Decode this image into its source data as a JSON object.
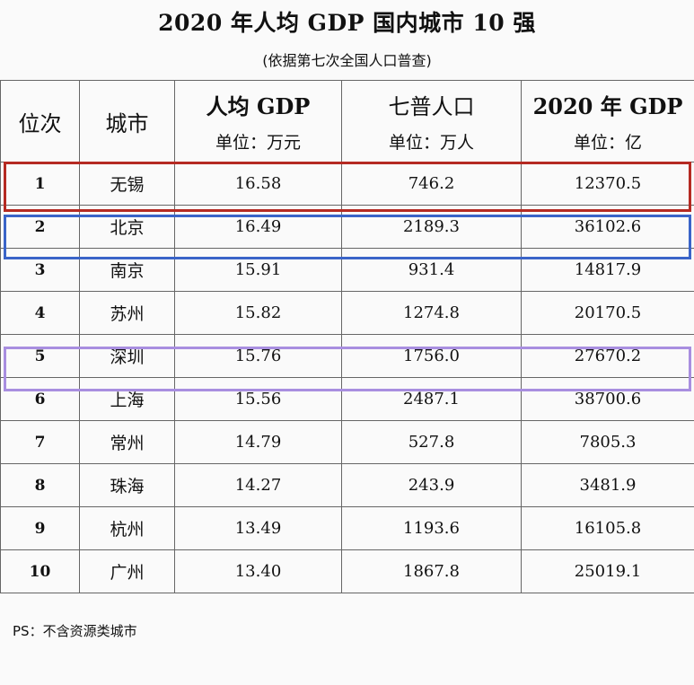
{
  "title": "2020 年人均 GDP 国内城市 10 强",
  "subtitle": "(依据第七次全国人口普查)",
  "columns": {
    "rank": "位次",
    "city": "城市",
    "gdp_per_capita": {
      "label": "人均 GDP",
      "unit": "单位：万元"
    },
    "population": {
      "label": "七普人口",
      "unit": "单位：万人"
    },
    "gdp": {
      "label": "2020 年 GDP",
      "unit": "单位：亿"
    }
  },
  "rows": [
    {
      "rank": "1",
      "city": "无锡",
      "gdp_per_capita": "16.58",
      "population": "746.2",
      "gdp": "12370.5"
    },
    {
      "rank": "2",
      "city": "北京",
      "gdp_per_capita": "16.49",
      "population": "2189.3",
      "gdp": "36102.6"
    },
    {
      "rank": "3",
      "city": "南京",
      "gdp_per_capita": "15.91",
      "population": "931.4",
      "gdp": "14817.9"
    },
    {
      "rank": "4",
      "city": "苏州",
      "gdp_per_capita": "15.82",
      "population": "1274.8",
      "gdp": "20170.5"
    },
    {
      "rank": "5",
      "city": "深圳",
      "gdp_per_capita": "15.76",
      "population": "1756.0",
      "gdp": "27670.2"
    },
    {
      "rank": "6",
      "city": "上海",
      "gdp_per_capita": "15.56",
      "population": "2487.1",
      "gdp": "38700.6"
    },
    {
      "rank": "7",
      "city": "常州",
      "gdp_per_capita": "14.79",
      "population": "527.8",
      "gdp": "7805.3"
    },
    {
      "rank": "8",
      "city": "珠海",
      "gdp_per_capita": "14.27",
      "population": "243.9",
      "gdp": "3481.9"
    },
    {
      "rank": "9",
      "city": "杭州",
      "gdp_per_capita": "13.49",
      "population": "1193.6",
      "gdp": "16105.8"
    },
    {
      "rank": "10",
      "city": "广州",
      "gdp_per_capita": "13.40",
      "population": "1867.8",
      "gdp": "25019.1"
    }
  ],
  "highlight_colors": {
    "row_1": "#b52a22",
    "row_2": "#3a64c8",
    "row_5": "#a88ee0"
  },
  "footnote": "PS：不含资源类城市"
}
